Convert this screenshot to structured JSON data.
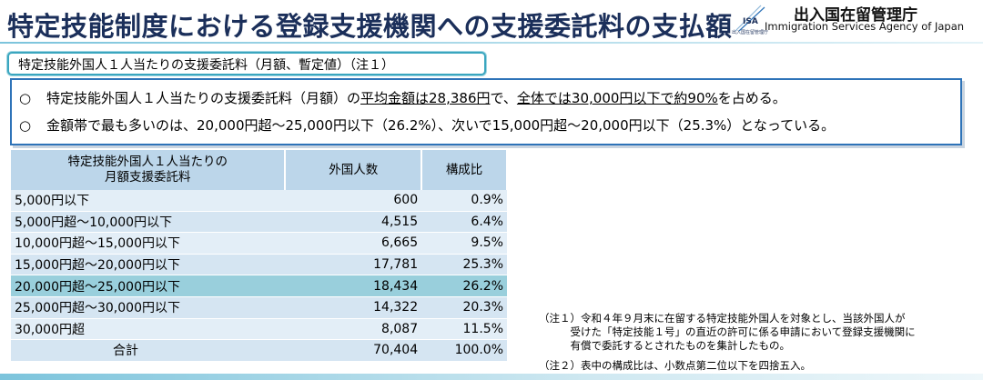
{
  "header": {
    "title": "特定技能制度における登録支援機関への支援委託料の支払額",
    "logo_text": "ISA",
    "logo_sub": "出入国在留管理庁",
    "agency_jp": "出入国在留管理庁",
    "agency_en": "Immigration Services Agency of Japan"
  },
  "section_label": "特定技能外国人１人当たりの支援委託料（月額、暫定値）（注１）",
  "summary": {
    "line1": {
      "bullet": "○",
      "pre": "特定技能外国人１人当たりの支援委託料（月額）の",
      "u1": "平均金額は28,386円",
      "mid": "で、",
      "u2": "全体では30,000円以下で約90%",
      "post": "を占める。"
    },
    "line2": {
      "bullet": "○",
      "text": "金額帯で最も多いのは、20,000円超～25,000円以下（26.2%）、次いで15,000円超～20,000円以下（25.3%）となっている。"
    }
  },
  "table": {
    "headers": [
      "特定技能外国人１人当たりの\n月額支援委託料",
      "外国人数",
      "構成比"
    ],
    "rows": [
      {
        "range": "5,000円以下",
        "count": "600",
        "ratio": "0.9%"
      },
      {
        "range": "5,000円超～10,000円以下",
        "count": "4,515",
        "ratio": "6.4%"
      },
      {
        "range": "10,000円超～15,000円以下",
        "count": "6,665",
        "ratio": "9.5%"
      },
      {
        "range": "15,000円超～20,000円以下",
        "count": "17,781",
        "ratio": "25.3%"
      },
      {
        "range": "20,000円超～25,000円以下",
        "count": "18,434",
        "ratio": "26.2%"
      },
      {
        "range": "25,000円超～30,000円以下",
        "count": "14,322",
        "ratio": "20.3%"
      },
      {
        "range": "30,000円超",
        "count": "8,087",
        "ratio": "11.5%"
      },
      {
        "range": "合計",
        "count": "70,404",
        "ratio": "100.0%"
      }
    ],
    "highlight_color": "#99cfdc"
  },
  "notes": {
    "note1_line1": "（注１）令和４年９月末に在留する特定技能外国人を対象とし、当該外国人が",
    "note1_line2": "　　　受けた「特定技能１号」の直近の許可に係る申請において登録支援機関に",
    "note1_line3": "　　　有償で委託するとされたものを集計したもの。",
    "note2": "（注２）表中の構成比は、小数点第二位以下を四捨五入。"
  }
}
